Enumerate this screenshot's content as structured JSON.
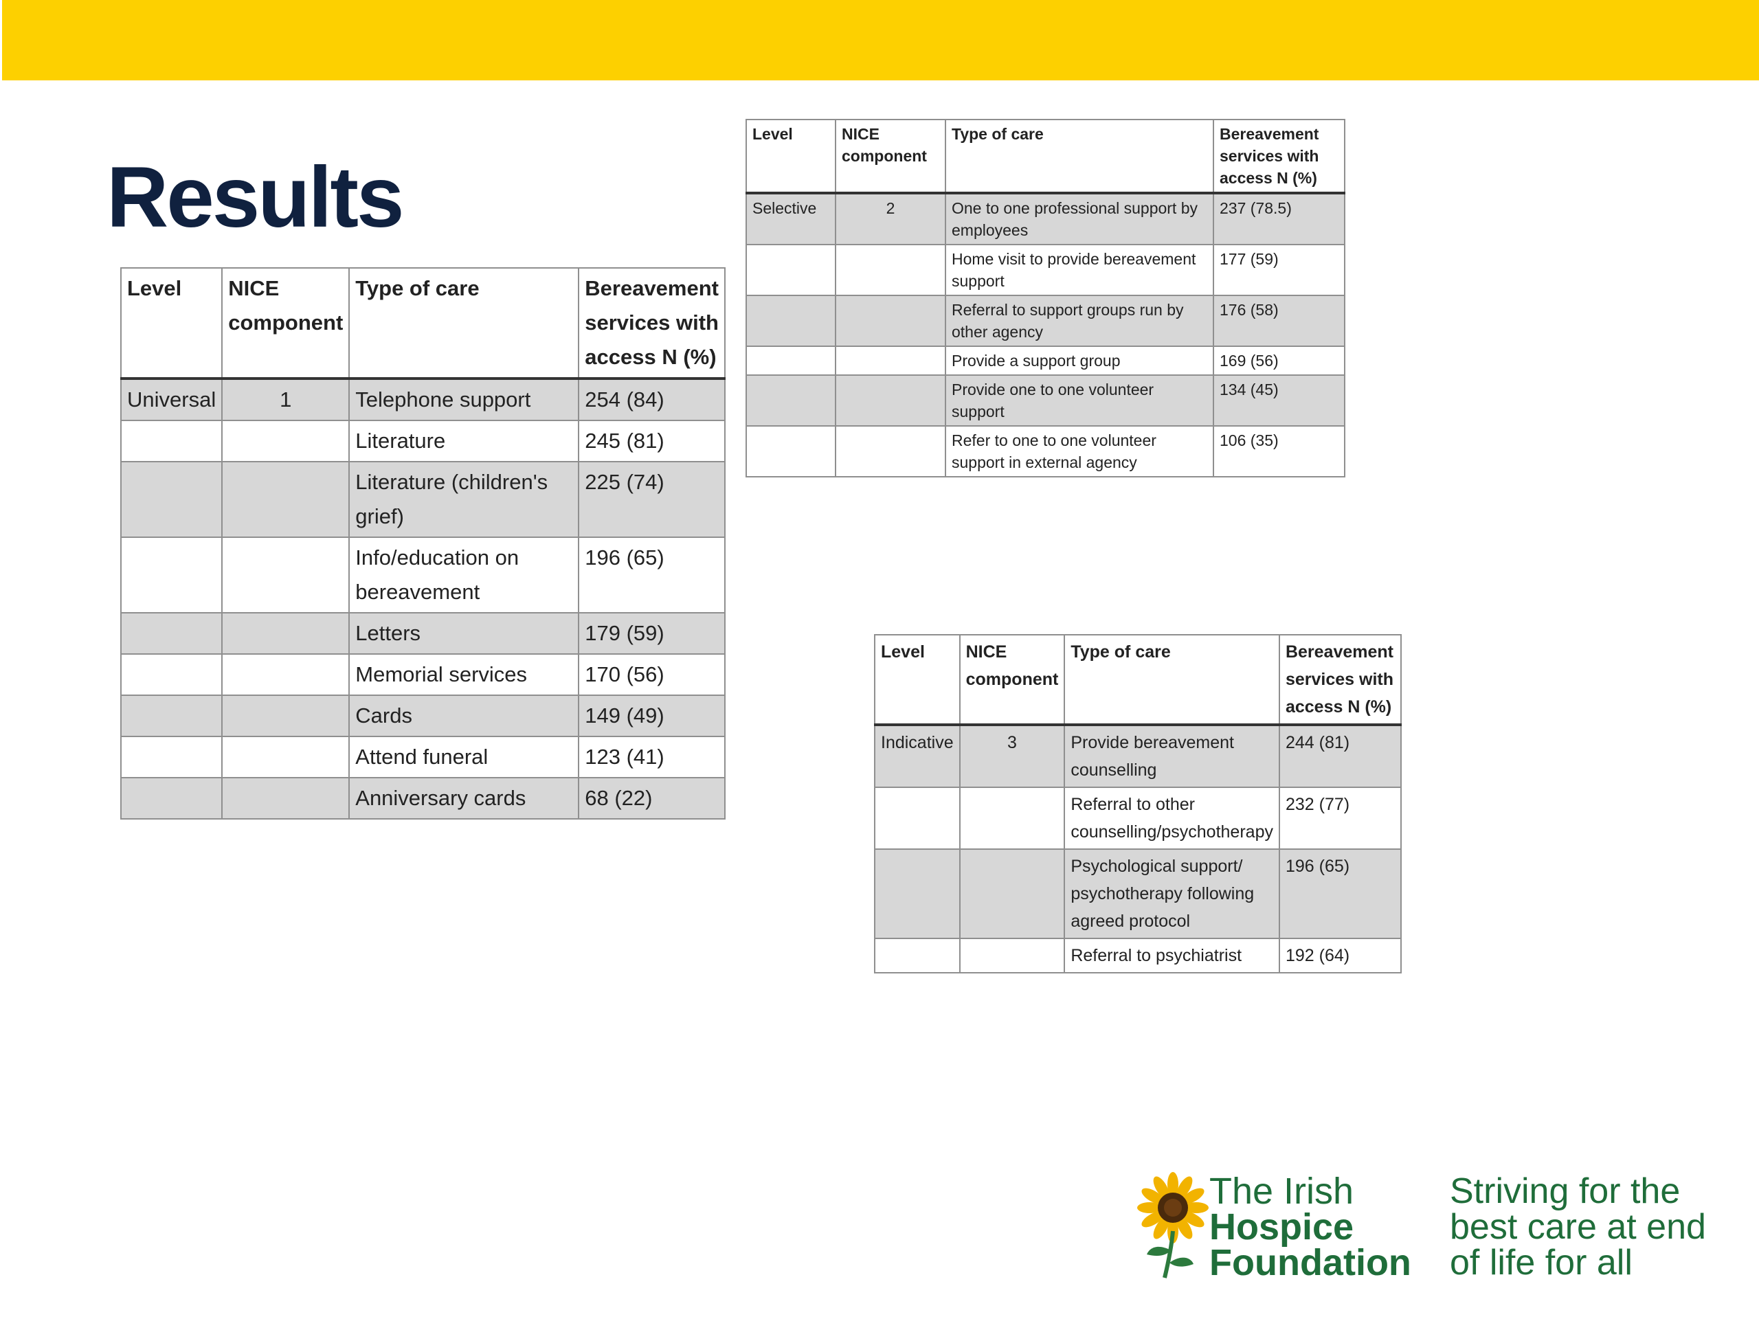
{
  "slide": {
    "title": "Results",
    "colors": {
      "banner": "#fdd000",
      "title": "#10213f",
      "shade": "#d7d7d7",
      "logo_green": "#1f6d3a"
    }
  },
  "headers": {
    "level": "Level",
    "nice": "NICE component",
    "type": "Type of care",
    "access": "Bereavement services with access N (%)"
  },
  "universal": {
    "level": "Universal",
    "component": "1",
    "rows": [
      {
        "type": "Telephone support",
        "n": "254 (84)"
      },
      {
        "type": "Literature",
        "n": "245 (81)"
      },
      {
        "type": "Literature (children's grief)",
        "n": "225 (74)"
      },
      {
        "type": "Info/education on bereavement",
        "n": "196 (65)"
      },
      {
        "type": "Letters",
        "n": "179 (59)"
      },
      {
        "type": "Memorial services",
        "n": "170 (56)"
      },
      {
        "type": "Cards",
        "n": "149 (49)"
      },
      {
        "type": "Attend funeral",
        "n": "123 (41)"
      },
      {
        "type": "Anniversary cards",
        "n": "68 (22)"
      }
    ]
  },
  "selective": {
    "level": "Selective",
    "component": "2",
    "rows": [
      {
        "type": "One to one professional support by employees",
        "n": "237 (78.5)"
      },
      {
        "type": "Home visit to provide bereavement support",
        "n": "177 (59)"
      },
      {
        "type": "Referral to support groups run by other agency",
        "n": "176 (58)"
      },
      {
        "type": "Provide a support group",
        "n": "169 (56)"
      },
      {
        "type": "Provide one to one volunteer support",
        "n": "134 (45)"
      },
      {
        "type": "Refer to one to one volunteer support in external agency",
        "n": "106 (35)"
      }
    ]
  },
  "indicative": {
    "level": "Indicative",
    "component": "3",
    "rows": [
      {
        "type": "Provide bereavement counselling",
        "n": "244 (81)"
      },
      {
        "type": "Referral to other counselling/psychotherapy",
        "n": "232 (77)"
      },
      {
        "type": "Psychological support/ psychotherapy following agreed protocol",
        "n": "196 (65)"
      },
      {
        "type": "Referral to psychiatrist",
        "n": "192 (64)"
      }
    ]
  },
  "logo": {
    "name_line1": "The Irish",
    "name_line2": "Hospice",
    "name_line3": "Foundation",
    "tagline_line1": "Striving for the",
    "tagline_line2": "best care at end",
    "tagline_line3": "of life for all"
  }
}
